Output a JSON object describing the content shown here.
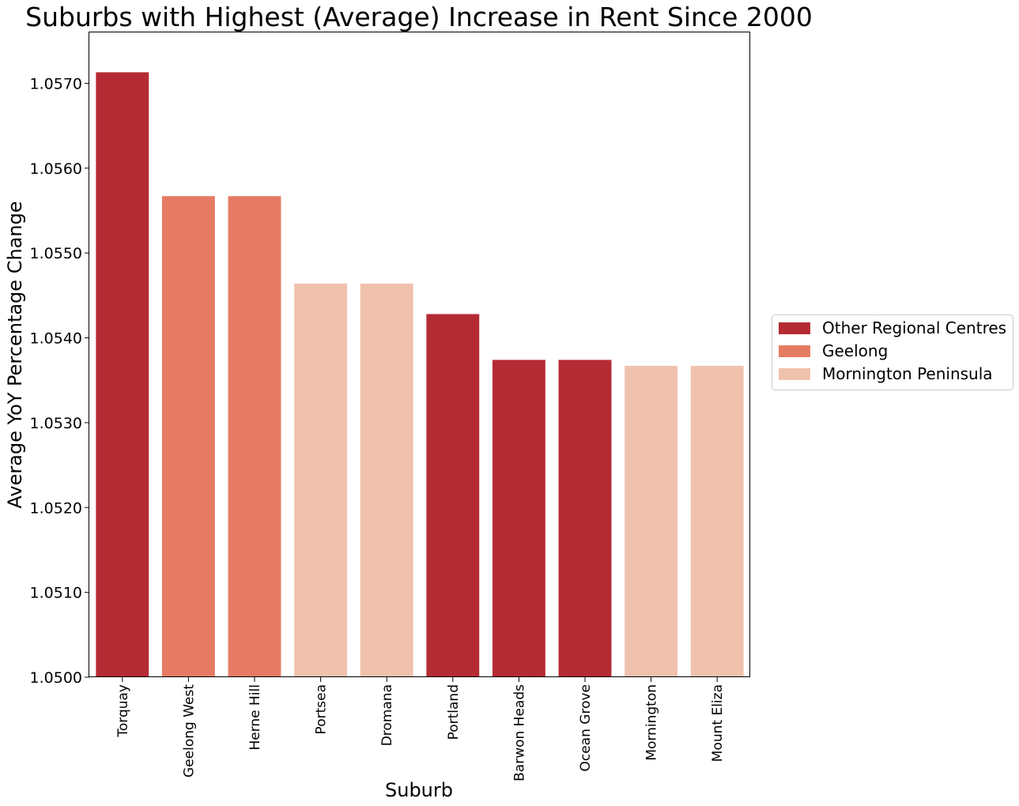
{
  "chart_data": {
    "type": "bar",
    "title": "Suburbs with Highest (Average) Increase in Rent Since 2000",
    "xlabel": "Suburb",
    "ylabel": "Average YoY Percentage Change",
    "categories": [
      "Torquay",
      "Geelong West",
      "Herne Hill",
      "Portsea",
      "Dromana",
      "Portland",
      "Barwon Heads",
      "Ocean Grove",
      "Mornington",
      "Mount Eliza"
    ],
    "values": [
      1.05713,
      1.05567,
      1.05567,
      1.05464,
      1.05464,
      1.05428,
      1.05374,
      1.05374,
      1.05367,
      1.05367
    ],
    "groups": [
      "Other Regional Centres",
      "Geelong",
      "Geelong",
      "Mornington Peninsula",
      "Mornington Peninsula",
      "Other Regional Centres",
      "Other Regional Centres",
      "Other Regional Centres",
      "Mornington Peninsula",
      "Mornington Peninsula"
    ],
    "ylim": [
      1.05,
      1.0576
    ],
    "yticks": [
      1.05,
      1.051,
      1.052,
      1.053,
      1.054,
      1.055,
      1.056,
      1.057
    ],
    "ytick_labels": [
      "1.0500",
      "1.0510",
      "1.0520",
      "1.0530",
      "1.0540",
      "1.0550",
      "1.0560",
      "1.0570"
    ],
    "grid": false,
    "legend": {
      "placement": "right",
      "entries": [
        {
          "name": "Other Regional Centres",
          "color": "#b52b33"
        },
        {
          "name": "Geelong",
          "color": "#e67b63"
        },
        {
          "name": "Mornington Peninsula",
          "color": "#f0c2ae"
        }
      ]
    }
  }
}
